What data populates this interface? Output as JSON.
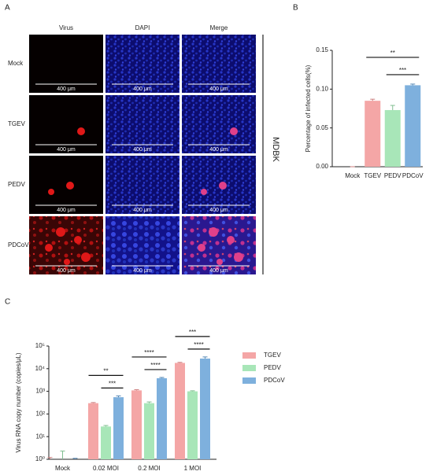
{
  "panel_a": {
    "letter": "A",
    "columns": [
      "Virus",
      "DAPI",
      "Merge"
    ],
    "rows": [
      "Mock",
      "TGEV",
      "PEDV",
      "PDCoV"
    ],
    "scale_bar": "400 μm",
    "cell_line": "MDBK"
  },
  "chart_data": [
    {
      "type": "bar",
      "panel": "B",
      "ylabel": "Percentage of infected cells(%)",
      "categories": [
        "Mock",
        "TGEV",
        "PEDV",
        "PDCoV"
      ],
      "values": [
        0,
        0.085,
        0.073,
        0.105
      ],
      "errors": [
        0,
        0.002,
        0.006,
        0.0015
      ],
      "colors": [
        "#f4a6a6",
        "#f4a6a6",
        "#a8e6b8",
        "#7eb0dd"
      ],
      "ylim": [
        0,
        0.15
      ],
      "yticks": [
        {
          "value": 0,
          "label": "0.00"
        },
        {
          "value": 0.05,
          "label": "0.05"
        },
        {
          "value": 0.1,
          "label": "0.10"
        },
        {
          "value": 0.15,
          "label": "0.15"
        }
      ],
      "significance": [
        {
          "between": [
            "TGEV",
            "PDCoV"
          ],
          "label": "**"
        },
        {
          "between": [
            "PEDV",
            "PDCoV"
          ],
          "label": "***"
        }
      ]
    },
    {
      "type": "grouped-bar",
      "panel": "C",
      "ylabel": "Virus RNA copy number (copies/μL)",
      "categories": [
        "Mock",
        "0.02 MOI",
        "0.2 MOI",
        "1 MOI"
      ],
      "series": [
        {
          "name": "TGEV",
          "color": "#f4a6a6",
          "values": [
            1,
            300,
            1100,
            18000
          ],
          "errors": [
            0.2,
            20,
            80,
            1000
          ]
        },
        {
          "name": "PEDV",
          "color": "#a8e6b8",
          "values": [
            1,
            28,
            300,
            1000
          ],
          "errors": [
            1.3,
            3,
            40,
            60
          ]
        },
        {
          "name": "PDCoV",
          "color": "#7eb0dd",
          "values": [
            1,
            550,
            3800,
            28000
          ],
          "errors": [
            0.1,
            80,
            300,
            5000
          ]
        }
      ],
      "log_scale": true,
      "ylim": [
        1,
        100000
      ],
      "yticks": [
        {
          "value": 1,
          "label": "10⁰"
        },
        {
          "value": 10,
          "label": "10¹"
        },
        {
          "value": 100,
          "label": "10²"
        },
        {
          "value": 1000,
          "label": "10³"
        },
        {
          "value": 10000,
          "label": "10⁴"
        },
        {
          "value": 100000,
          "label": "10⁵"
        }
      ],
      "legend": "right",
      "significance": [
        {
          "group": "0.02 MOI",
          "between": [
            "TGEV",
            "PDCoV"
          ],
          "label": "**"
        },
        {
          "group": "0.02 MOI",
          "between": [
            "PEDV",
            "PDCoV"
          ],
          "label": "***"
        },
        {
          "group": "0.2 MOI",
          "between": [
            "TGEV",
            "PDCoV"
          ],
          "label": "****"
        },
        {
          "group": "0.2 MOI",
          "between": [
            "PEDV",
            "PDCoV"
          ],
          "label": "****"
        },
        {
          "group": "1 MOI",
          "between": [
            "TGEV",
            "PDCoV"
          ],
          "label": "***"
        },
        {
          "group": "1 MOI",
          "between": [
            "PEDV",
            "PDCoV"
          ],
          "label": "****"
        }
      ]
    }
  ]
}
